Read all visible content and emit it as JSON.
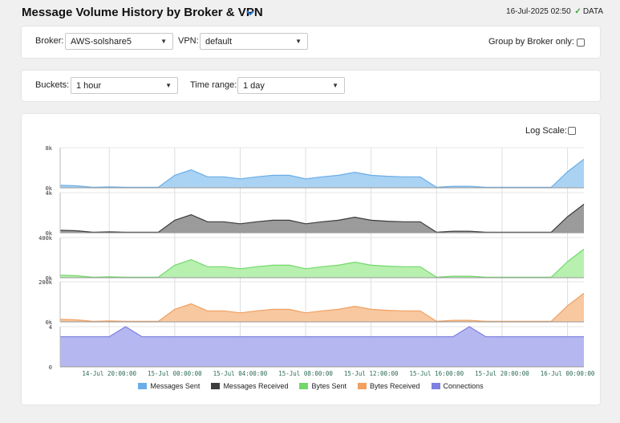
{
  "header": {
    "title": "Message Volume History by Broker & VPN",
    "timestamp": "16-Jul-2025 02:50",
    "status": "DATA",
    "status_color": "#3aa53a"
  },
  "filters": {
    "broker_label": "Broker:",
    "broker_value": "AWS-solshare5",
    "vpn_label": "VPN:",
    "vpn_value": "default",
    "group_label": "Group by Broker only:",
    "group_checked": false,
    "buckets_label": "Buckets:",
    "buckets_value": "1 hour",
    "range_label": "Time range:",
    "range_value": "1 day"
  },
  "log_scale": {
    "label": "Log Scale:",
    "checked": false
  },
  "chart_data": {
    "type": "area",
    "x_ticks": [
      "14-Jul 20:00:00",
      "15-Jul 00:00:00",
      "15-Jul 04:00:00",
      "15-Jul 08:00:00",
      "15-Jul 12:00:00",
      "15-Jul 16:00:00",
      "15-Jul 20:00:00",
      "16-Jul 00:00:00"
    ],
    "x_start": "14-Jul 17:00:00",
    "x_end": "16-Jul 01:00:00",
    "x": [
      "14-Jul 17:00",
      "14-Jul 18:00",
      "14-Jul 19:00",
      "14-Jul 20:00",
      "14-Jul 21:00",
      "14-Jul 22:00",
      "14-Jul 23:00",
      "15-Jul 00:00",
      "15-Jul 01:00",
      "15-Jul 02:00",
      "15-Jul 03:00",
      "15-Jul 04:00",
      "15-Jul 05:00",
      "15-Jul 06:00",
      "15-Jul 07:00",
      "15-Jul 08:00",
      "15-Jul 09:00",
      "15-Jul 10:00",
      "15-Jul 11:00",
      "15-Jul 12:00",
      "15-Jul 13:00",
      "15-Jul 14:00",
      "15-Jul 15:00",
      "15-Jul 16:00",
      "15-Jul 17:00",
      "15-Jul 18:00",
      "15-Jul 19:00",
      "15-Jul 20:00",
      "15-Jul 21:00",
      "15-Jul 22:00",
      "15-Jul 23:00",
      "16-Jul 00:00",
      "16-Jul 01:00"
    ],
    "series": [
      {
        "name": "Messages Sent",
        "color": "#a9d2f3",
        "stroke": "#6aaee8",
        "ymax": 8000,
        "tick_top": "8k",
        "tick_bottom": "0k",
        "values": [
          500,
          400,
          100,
          200,
          100,
          100,
          100,
          2500,
          3600,
          2200,
          2200,
          1800,
          2200,
          2500,
          2500,
          1800,
          2200,
          2500,
          3100,
          2500,
          2300,
          2200,
          2200,
          100,
          300,
          300,
          100,
          100,
          100,
          100,
          100,
          3200,
          5700
        ]
      },
      {
        "name": "Messages Received",
        "color": "#9b9b9b",
        "stroke": "#3c3c3c",
        "ymax": 4000,
        "tick_top": "4k",
        "tick_bottom": "0k",
        "values": [
          250,
          200,
          50,
          100,
          50,
          50,
          50,
          1250,
          1800,
          1100,
          1100,
          900,
          1100,
          1250,
          1250,
          900,
          1100,
          1250,
          1550,
          1250,
          1150,
          1100,
          1100,
          50,
          150,
          150,
          50,
          50,
          50,
          50,
          50,
          1600,
          2850
        ]
      },
      {
        "name": "Bytes Sent",
        "color": "#b8f0b0",
        "stroke": "#72d86a",
        "ymax": 400000,
        "tick_top": "400k",
        "tick_bottom": "0k",
        "values": [
          25000,
          20000,
          5000,
          10000,
          5000,
          5000,
          5000,
          125000,
          180000,
          110000,
          110000,
          90000,
          110000,
          125000,
          125000,
          90000,
          110000,
          125000,
          155000,
          125000,
          115000,
          110000,
          110000,
          5000,
          15000,
          15000,
          5000,
          5000,
          5000,
          5000,
          5000,
          160000,
          285000
        ]
      },
      {
        "name": "Bytes Received",
        "color": "#f8c8a0",
        "stroke": "#f0a060",
        "ymax": 200000,
        "tick_top": "200k",
        "tick_bottom": "0k",
        "values": [
          12500,
          10000,
          2500,
          5000,
          2500,
          2500,
          2500,
          62500,
          90000,
          55000,
          55000,
          45000,
          55000,
          62500,
          62500,
          45000,
          55000,
          62500,
          77500,
          62500,
          57500,
          55000,
          55000,
          2500,
          7500,
          7500,
          2500,
          2500,
          2500,
          2500,
          2500,
          80000,
          142500
        ]
      },
      {
        "name": "Connections",
        "color": "#b5b8f0",
        "stroke": "#7d81e0",
        "ymax": 4,
        "tick_top": "4",
        "tick_bottom": "0",
        "values": [
          3,
          3,
          3,
          3,
          4,
          3,
          3,
          3,
          3,
          3,
          3,
          3,
          3,
          3,
          3,
          3,
          3,
          3,
          3,
          3,
          3,
          3,
          3,
          3,
          3,
          4,
          3,
          3,
          3,
          3,
          3,
          3,
          3
        ]
      }
    ]
  }
}
